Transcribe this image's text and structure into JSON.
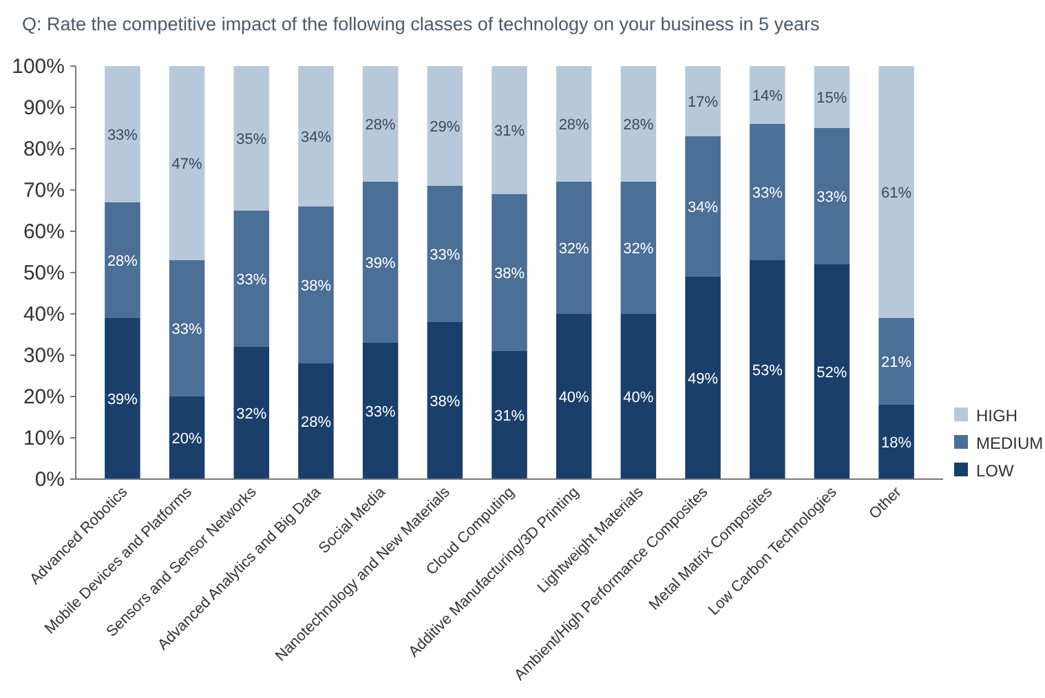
{
  "chart_data": {
    "type": "bar",
    "title": "Q: Rate the competitive impact of the following classes of technology on your business in 5 years",
    "categories": [
      "Advanced Robotics",
      "Mobile Devices and Platforms",
      "Sensors and Sensor Networks",
      "Advanced Analytics and Big Data",
      "Social Media",
      "Nanotechnology and New Materials",
      "Cloud Computing",
      "Additive Manufacturing/3D Printing",
      "Lightweight Materials",
      "Ambient/High Performance Composites",
      "Metal Matrix Composites",
      "Low Carbon Technologies",
      "Other"
    ],
    "series": [
      {
        "name": "LOW",
        "color": "#1b3f6b",
        "values": [
          39,
          20,
          32,
          28,
          33,
          38,
          31,
          40,
          40,
          49,
          53,
          52,
          18
        ],
        "value_labels": [
          "39%",
          "20%",
          "32%",
          "28%",
          "33%",
          "38%",
          "31%",
          "40%",
          "40%",
          "49%",
          "53%",
          "52%",
          "18%"
        ]
      },
      {
        "name": "MEDIUM",
        "color": "#4b6f96",
        "values": [
          28,
          33,
          33,
          38,
          39,
          33,
          38,
          32,
          32,
          34,
          33,
          33,
          21
        ],
        "value_labels": [
          "28%",
          "33%",
          "33%",
          "38%",
          "39%",
          "33%",
          "38%",
          "32%",
          "32%",
          "34%",
          "33%",
          "33%",
          "21%"
        ]
      },
      {
        "name": "HIGH",
        "color": "#b7c8da",
        "values": [
          33,
          47,
          35,
          34,
          28,
          29,
          31,
          28,
          28,
          17,
          14,
          15,
          61
        ],
        "value_labels": [
          "33%",
          "47%",
          "35%",
          "34%",
          "28%",
          "29%",
          "31%",
          "28%",
          "28%",
          "17%",
          "14%",
          "15%",
          "61%"
        ]
      }
    ],
    "stacked": true,
    "ylim": [
      0,
      100
    ],
    "yticks": [
      {
        "value": 0,
        "label": "0%"
      },
      {
        "value": 10,
        "label": "10%"
      },
      {
        "value": 20,
        "label": "20%"
      },
      {
        "value": 30,
        "label": "30%"
      },
      {
        "value": 40,
        "label": "40%"
      },
      {
        "value": 50,
        "label": "50%"
      },
      {
        "value": 60,
        "label": "60%"
      },
      {
        "value": 70,
        "label": "70%"
      },
      {
        "value": 80,
        "label": "80%"
      },
      {
        "value": 90,
        "label": "90%"
      },
      {
        "value": 100,
        "label": "100%"
      }
    ],
    "grid": false,
    "legend": "bottom right"
  }
}
